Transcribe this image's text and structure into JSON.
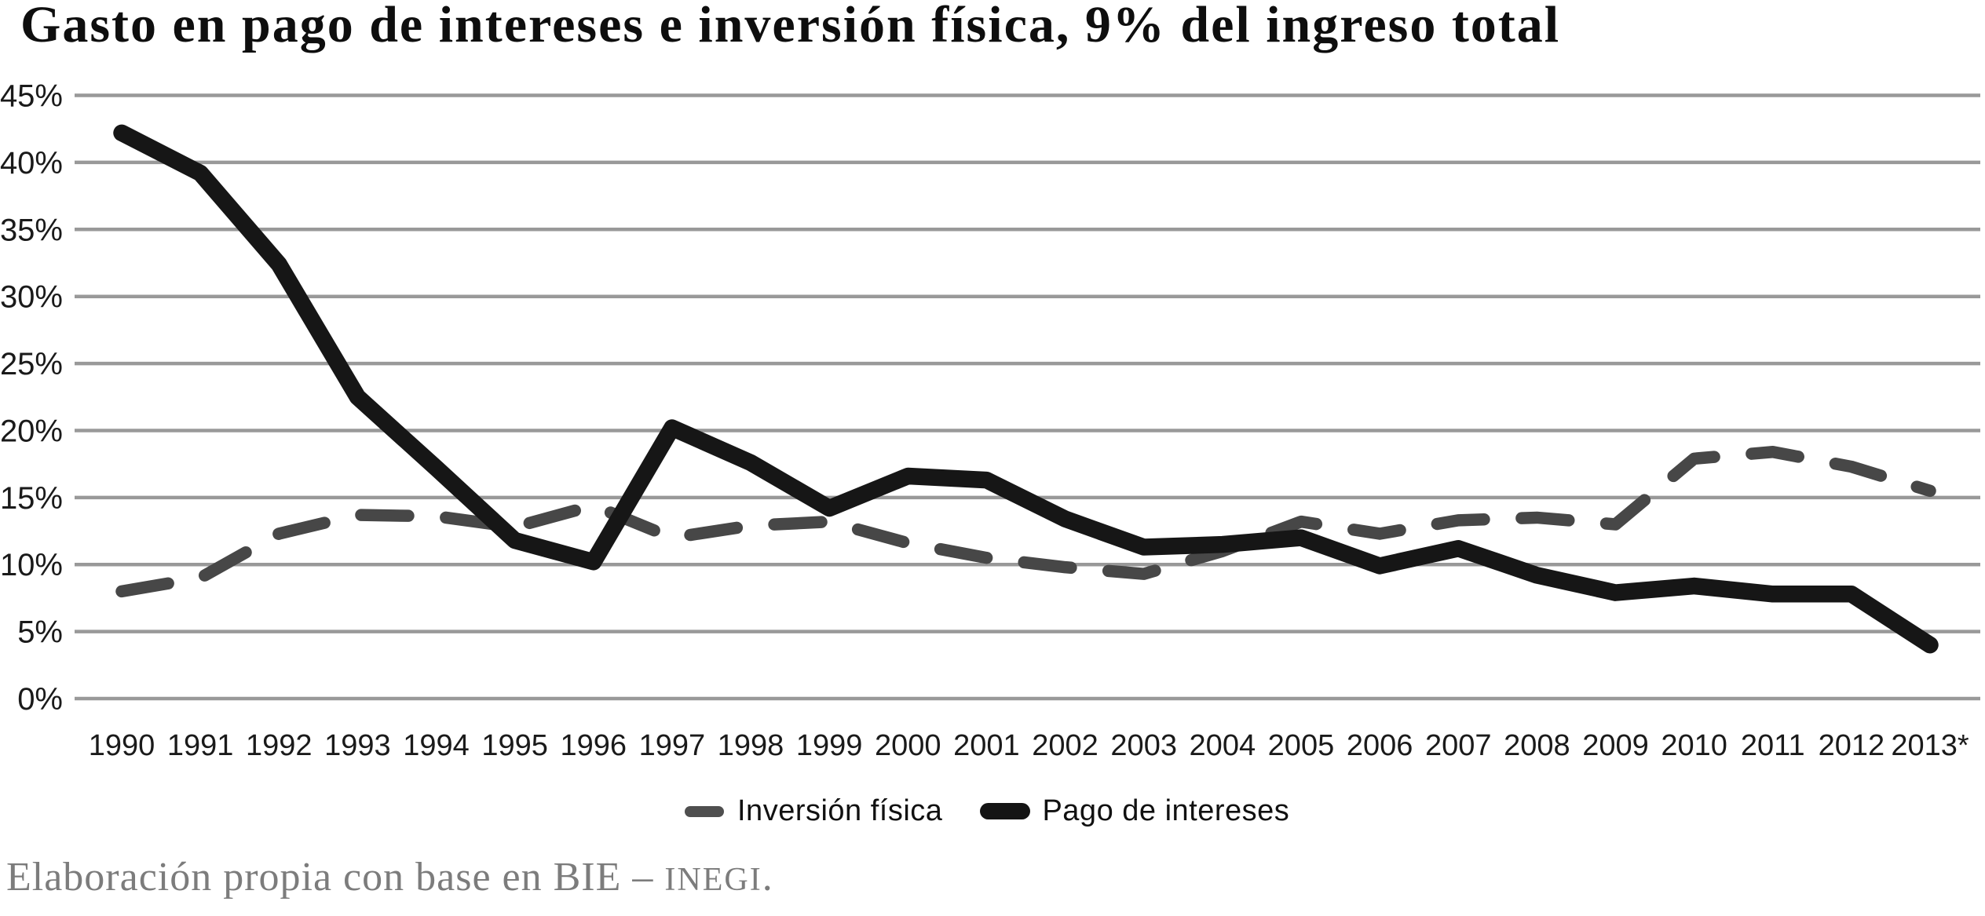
{
  "title": "Gasto en pago de intereses e inversión física, 9% del ingreso total",
  "legend": [
    {
      "label": "Inversión física",
      "style": "dashed",
      "color": "#4f4f4f"
    },
    {
      "label": "Pago de intereses",
      "style": "solid",
      "color": "#141414"
    }
  ],
  "footer": {
    "prefix": "Elaboración propia con base en BIE – ",
    "source_acronym": "INEGI",
    "suffix": "."
  },
  "colors": {
    "investment_line": "#474747",
    "interest_line": "#161616",
    "gridline": "#999999",
    "axis_text": "#1a1a1a",
    "title_text": "#0e0e0e",
    "footer_text": "#7c7c7c"
  },
  "chart_data": {
    "type": "line",
    "title": "Gasto en pago de intereses e inversión física, 9% del ingreso total",
    "xlabel": "",
    "ylabel": "",
    "ylim": [
      0,
      45
    ],
    "grid": true,
    "legend_position": "bottom",
    "categories": [
      "1990",
      "1991",
      "1992",
      "1993",
      "1994",
      "1995",
      "1996",
      "1997",
      "1998",
      "1999",
      "2000",
      "2001",
      "2002",
      "2003",
      "2004",
      "2005",
      "2006",
      "2007",
      "2008",
      "2009",
      "2010",
      "2011",
      "2012",
      "2013*"
    ],
    "yticks": [
      {
        "label": "45%",
        "value": 45
      },
      {
        "label": "40%",
        "value": 40
      },
      {
        "label": "35%",
        "value": 35
      },
      {
        "label": "30%",
        "value": 30
      },
      {
        "label": "25%",
        "value": 25
      },
      {
        "label": "20%",
        "value": 20
      },
      {
        "label": "15%",
        "value": 15
      },
      {
        "label": "10%",
        "value": 10
      },
      {
        "label": "5%",
        "value": 5
      },
      {
        "label": "0%",
        "value": 0
      }
    ],
    "series": [
      {
        "name": "Inversión física",
        "style": "dashed",
        "color": "#474747",
        "values": [
          8.0,
          9.0,
          12.3,
          13.7,
          13.6,
          12.8,
          14.4,
          12.0,
          12.9,
          13.2,
          11.6,
          10.5,
          9.8,
          9.3,
          11.0,
          13.2,
          12.3,
          13.3,
          13.5,
          13.0,
          17.9,
          18.4,
          17.3,
          15.5
        ]
      },
      {
        "name": "Pago de intereses",
        "style": "solid",
        "color": "#161616",
        "values": [
          42.2,
          39.2,
          32.4,
          22.5,
          17.2,
          11.8,
          10.2,
          20.2,
          17.6,
          14.2,
          16.6,
          16.3,
          13.4,
          11.3,
          11.5,
          12.0,
          9.9,
          11.2,
          9.2,
          7.9,
          8.4,
          7.8,
          7.8,
          4.0
        ]
      }
    ]
  }
}
